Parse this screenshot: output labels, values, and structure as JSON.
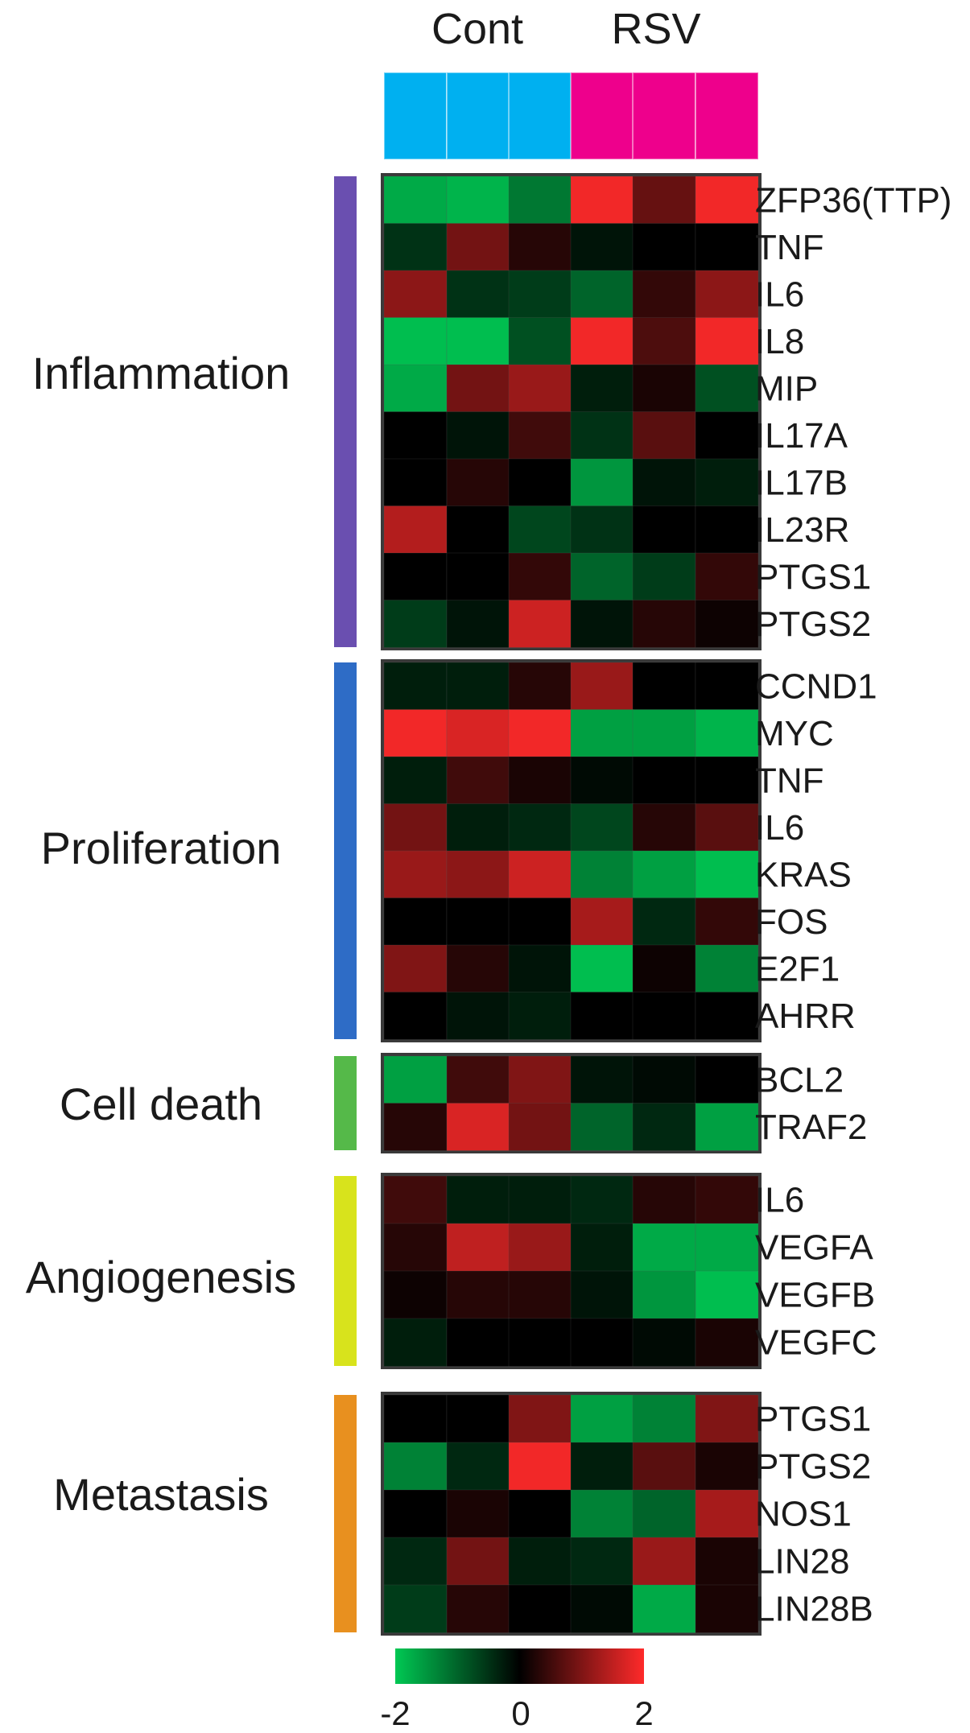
{
  "chart_data": {
    "type": "heatmap",
    "groups": [
      {
        "label": "Cont",
        "color": "#00b0f0",
        "n": 3
      },
      {
        "label": "RSV",
        "color": "#ee008c",
        "n": 3
      }
    ],
    "colorscale": {
      "min": -2,
      "max": 2,
      "ticks": [
        "-2",
        "0",
        "2"
      ],
      "low": "#00c853",
      "mid": "#000000",
      "high": "#ff2a2a"
    },
    "categories": [
      {
        "name": "Inflammation",
        "color": "#6a4fb0",
        "rows": [
          {
            "gene": "ZFP36(TTP)",
            "values": [
              -1.7,
              -1.8,
              -1.2,
              1.9,
              0.8,
              1.9
            ]
          },
          {
            "gene": "TNF",
            "values": [
              -0.5,
              0.9,
              0.3,
              -0.2,
              0.0,
              0.0
            ]
          },
          {
            "gene": "IL6",
            "values": [
              1.1,
              -0.5,
              -0.6,
              -1.0,
              0.4,
              1.1
            ]
          },
          {
            "gene": "IL8",
            "values": [
              -1.9,
              -1.9,
              -0.8,
              1.9,
              0.6,
              1.9
            ]
          },
          {
            "gene": "MIP",
            "values": [
              -1.7,
              0.9,
              1.2,
              -0.3,
              0.2,
              -0.8
            ]
          },
          {
            "gene": "IL17A",
            "values": [
              0.0,
              -0.2,
              0.5,
              -0.5,
              0.7,
              0.0
            ]
          },
          {
            "gene": "IL17B",
            "values": [
              0.0,
              0.3,
              0.0,
              -1.5,
              -0.2,
              -0.3
            ]
          },
          {
            "gene": "IL23R",
            "values": [
              1.4,
              0.0,
              -0.7,
              -0.5,
              0.0,
              0.0
            ]
          },
          {
            "gene": "PTGS1",
            "values": [
              0.0,
              0.0,
              0.4,
              -1.0,
              -0.6,
              0.4
            ]
          },
          {
            "gene": "PTGS2",
            "values": [
              -0.6,
              -0.2,
              1.6,
              -0.2,
              0.3,
              0.1
            ]
          }
        ]
      },
      {
        "name": "Proliferation",
        "color": "#2e6cc6",
        "rows": [
          {
            "gene": "CCND1",
            "values": [
              -0.3,
              -0.3,
              0.3,
              1.2,
              0.0,
              0.0
            ]
          },
          {
            "gene": "MYC",
            "values": [
              1.9,
              1.7,
              1.9,
              -1.6,
              -1.6,
              -1.8
            ]
          },
          {
            "gene": "TNF",
            "values": [
              -0.3,
              0.5,
              0.2,
              -0.1,
              0.0,
              0.0
            ]
          },
          {
            "gene": "IL6",
            "values": [
              0.9,
              -0.3,
              -0.4,
              -0.7,
              0.3,
              0.7
            ]
          },
          {
            "gene": "KRAS",
            "values": [
              1.2,
              1.1,
              1.6,
              -1.3,
              -1.6,
              -1.9
            ]
          },
          {
            "gene": "FOS",
            "values": [
              0.0,
              0.0,
              0.0,
              1.3,
              -0.4,
              0.4
            ]
          },
          {
            "gene": "E2F1",
            "values": [
              1.0,
              0.3,
              -0.2,
              -1.9,
              0.1,
              -1.3
            ]
          },
          {
            "gene": "AHRR",
            "values": [
              0.0,
              -0.2,
              -0.3,
              0.0,
              0.0,
              0.0
            ]
          }
        ]
      },
      {
        "name": "Cell death",
        "color": "#55b949",
        "rows": [
          {
            "gene": "BCL2",
            "values": [
              -1.6,
              0.5,
              1.0,
              -0.2,
              -0.1,
              0.0
            ]
          },
          {
            "gene": "TRAF2",
            "values": [
              0.3,
              1.7,
              0.9,
              -1.0,
              -0.4,
              -1.6
            ]
          }
        ]
      },
      {
        "name": "Angiogenesis",
        "color": "#d8e31c",
        "rows": [
          {
            "gene": "IL6",
            "values": [
              0.5,
              -0.3,
              -0.3,
              -0.4,
              0.3,
              0.4
            ]
          },
          {
            "gene": "VEGFA",
            "values": [
              0.3,
              1.5,
              1.2,
              -0.3,
              -1.7,
              -1.7
            ]
          },
          {
            "gene": "VEGFB",
            "values": [
              0.1,
              0.3,
              0.3,
              -0.2,
              -1.5,
              -1.9
            ]
          },
          {
            "gene": "VEGFC",
            "values": [
              -0.3,
              0.0,
              0.0,
              0.0,
              -0.1,
              0.2
            ]
          }
        ]
      },
      {
        "name": "Metastasis",
        "color": "#e8901f",
        "rows": [
          {
            "gene": "PTGS1",
            "values": [
              0.0,
              0.0,
              1.0,
              -1.6,
              -1.3,
              1.0
            ]
          },
          {
            "gene": "PTGS2",
            "values": [
              -1.3,
              -0.4,
              1.9,
              -0.3,
              0.7,
              0.2
            ]
          },
          {
            "gene": "NOS1",
            "values": [
              0.0,
              0.2,
              0.0,
              -1.3,
              -1.0,
              1.3
            ]
          },
          {
            "gene": "LIN28",
            "values": [
              -0.4,
              0.9,
              -0.3,
              -0.4,
              1.2,
              0.2
            ]
          },
          {
            "gene": "LIN28B",
            "values": [
              -0.6,
              0.3,
              0.0,
              -0.1,
              -1.7,
              0.2
            ]
          }
        ]
      }
    ]
  }
}
